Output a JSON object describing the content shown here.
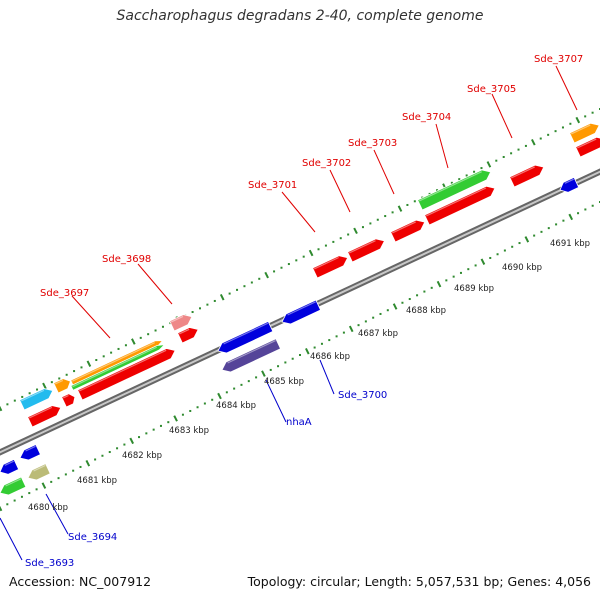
{
  "title": "Saccharophagus degradans 2-40, complete genome",
  "footer": {
    "accession": "Accession: NC_007912",
    "summary": "Topology: circular; Length: 5,057,531 bp; Genes: 4,056"
  },
  "colors": {
    "backbone": "#8a8a8a",
    "dots": "#2f8a2f",
    "forward_label": "#e00000",
    "reverse_label": "#0000cc",
    "red": "#ee0000",
    "green": "#33cc33",
    "orange": "#ff9900",
    "blue": "#0000dd",
    "cyan": "#22bbee",
    "pink": "#ee8888",
    "navy": "#554499",
    "olive": "#bbbb77"
  },
  "scale_labels": [
    "4680 kbp",
    "4681 kbp",
    "4682 kbp",
    "4683 kbp",
    "4684 kbp",
    "4685 kbp",
    "4686 kbp",
    "4687 kbp",
    "4688 kbp",
    "4689 kbp",
    "4690 kbp",
    "4691 kbp"
  ],
  "forward_gene_labels": [
    "Sde_3697",
    "Sde_3698",
    "Sde_3701",
    "Sde_3702",
    "Sde_3703",
    "Sde_3704",
    "Sde_3705",
    "Sde_3707"
  ],
  "reverse_gene_labels": [
    "Sde_3693",
    "Sde_3694",
    "nhaA",
    "Sde_3700"
  ]
}
